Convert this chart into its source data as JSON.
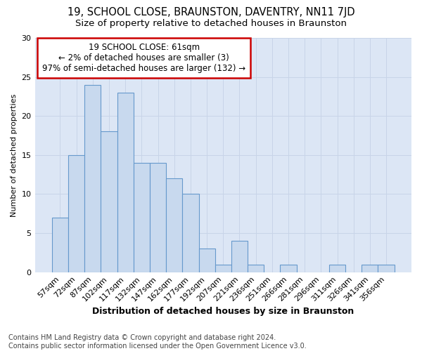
{
  "title": "19, SCHOOL CLOSE, BRAUNSTON, DAVENTRY, NN11 7JD",
  "subtitle": "Size of property relative to detached houses in Braunston",
  "xlabel": "Distribution of detached houses by size in Braunston",
  "ylabel": "Number of detached properties",
  "categories": [
    "57sqm",
    "72sqm",
    "87sqm",
    "102sqm",
    "117sqm",
    "132sqm",
    "147sqm",
    "162sqm",
    "177sqm",
    "192sqm",
    "207sqm",
    "221sqm",
    "236sqm",
    "251sqm",
    "266sqm",
    "281sqm",
    "296sqm",
    "311sqm",
    "326sqm",
    "341sqm",
    "356sqm"
  ],
  "values": [
    7,
    15,
    24,
    18,
    23,
    14,
    14,
    12,
    10,
    3,
    1,
    4,
    1,
    0,
    1,
    0,
    0,
    1,
    0,
    1,
    1
  ],
  "bar_color": "#c8d9ee",
  "bar_edge_color": "#6699cc",
  "annotation_box_text": "19 SCHOOL CLOSE: 61sqm\n← 2% of detached houses are smaller (3)\n97% of semi-detached houses are larger (132) →",
  "annotation_box_color": "#ffffff",
  "annotation_box_edge_color": "#cc0000",
  "grid_color": "#c8d4e8",
  "bg_color": "#dce6f5",
  "ylim": [
    0,
    30
  ],
  "yticks": [
    0,
    5,
    10,
    15,
    20,
    25,
    30
  ],
  "footnote": "Contains HM Land Registry data © Crown copyright and database right 2024.\nContains public sector information licensed under the Open Government Licence v3.0.",
  "title_fontsize": 10.5,
  "subtitle_fontsize": 9.5,
  "xlabel_fontsize": 9,
  "ylabel_fontsize": 8,
  "tick_fontsize": 8,
  "annotation_fontsize": 8.5,
  "footnote_fontsize": 7
}
